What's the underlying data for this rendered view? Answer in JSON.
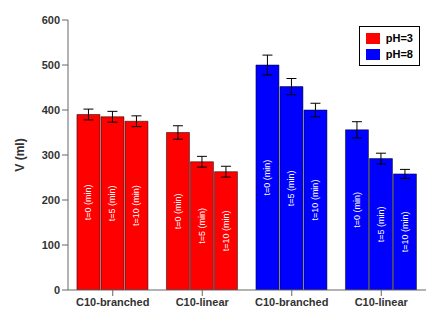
{
  "chart_data": {
    "type": "bar",
    "categories": [
      "C10-branched",
      "C10-linear",
      "C10-branched",
      "C10-linear"
    ],
    "series": [
      {
        "name": "t=0 (min)",
        "values": [
          390,
          350,
          500,
          356
        ],
        "errors": [
          12,
          15,
          22,
          18
        ],
        "colors": [
          "#ff0000",
          "#ff0000",
          "#0000ff",
          "#0000ff"
        ]
      },
      {
        "name": "t=5 (min)",
        "values": [
          385,
          285,
          452,
          292
        ],
        "errors": [
          12,
          12,
          18,
          12
        ],
        "colors": [
          "#ff0000",
          "#ff0000",
          "#0000ff",
          "#0000ff"
        ]
      },
      {
        "name": "t=10 (min)",
        "values": [
          375,
          263,
          400,
          258
        ],
        "errors": [
          12,
          12,
          15,
          10
        ],
        "colors": [
          "#ff0000",
          "#ff0000",
          "#0000ff",
          "#0000ff"
        ]
      }
    ],
    "y_label": "V (ml)",
    "ylim": [
      0,
      600
    ],
    "yticks": [
      0,
      100,
      200,
      300,
      400,
      500,
      600
    ],
    "grid": false,
    "legend": "upper right",
    "legend_entries": [
      {
        "name": "pH=3",
        "color": "#ff0000"
      },
      {
        "name": "pH=8",
        "color": "#0000ff"
      }
    ]
  }
}
